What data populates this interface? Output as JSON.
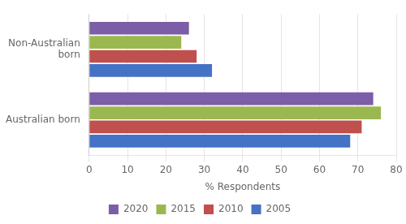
{
  "chart_data": {
    "type": "bar",
    "orientation": "horizontal",
    "categories": [
      "Australian born",
      "Non-Australian\nborn"
    ],
    "series": [
      {
        "name": "2020",
        "color": "#7B5EA7",
        "values": [
          74,
          26
        ]
      },
      {
        "name": "2015",
        "color": "#9BB850",
        "values": [
          76,
          24
        ]
      },
      {
        "name": "2010",
        "color": "#C0504D",
        "values": [
          71,
          28
        ]
      },
      {
        "name": "2005",
        "color": "#4472C4",
        "values": [
          68,
          32
        ]
      }
    ],
    "xlabel": "% Respondents",
    "xlim": [
      0,
      80
    ],
    "xticks": [
      0,
      10,
      20,
      30,
      40,
      50,
      60,
      70,
      80
    ],
    "grid": true,
    "legend": "bottom"
  }
}
